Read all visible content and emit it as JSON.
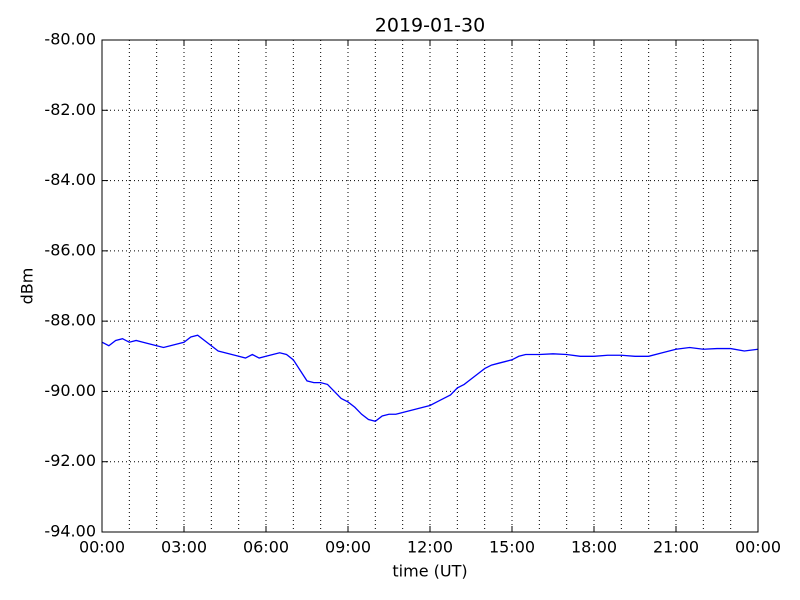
{
  "chart_data": {
    "type": "line",
    "title": "2019-01-30",
    "x_label": "time (UT)",
    "y_label": "dBm",
    "x": [
      0,
      0.25,
      0.5,
      0.75,
      1,
      1.25,
      1.5,
      1.75,
      2,
      2.25,
      2.5,
      2.75,
      3,
      3.25,
      3.5,
      3.75,
      4,
      4.25,
      4.5,
      4.75,
      5,
      5.25,
      5.5,
      5.75,
      6,
      6.25,
      6.5,
      6.75,
      7,
      7.25,
      7.5,
      7.75,
      8,
      8.25,
      8.5,
      8.75,
      9,
      9.25,
      9.5,
      9.75,
      10,
      10.25,
      10.5,
      10.75,
      11,
      11.25,
      11.5,
      11.75,
      12,
      12.25,
      12.5,
      12.75,
      13,
      13.25,
      13.5,
      13.75,
      14,
      14.25,
      14.5,
      14.75,
      15,
      15.25,
      15.5,
      16,
      16.5,
      17,
      17.5,
      18,
      18.5,
      19,
      19.5,
      20,
      20.5,
      21,
      21.5,
      22,
      22.5,
      23,
      23.5,
      24
    ],
    "values": [
      -88.6,
      -88.7,
      -88.55,
      -88.5,
      -88.6,
      -88.55,
      -88.6,
      -88.65,
      -88.7,
      -88.75,
      -88.7,
      -88.65,
      -88.6,
      -88.45,
      -88.4,
      -88.55,
      -88.7,
      -88.85,
      -88.9,
      -88.95,
      -89.0,
      -89.05,
      -88.95,
      -89.05,
      -89.0,
      -88.95,
      -88.9,
      -88.95,
      -89.1,
      -89.4,
      -89.7,
      -89.75,
      -89.75,
      -89.8,
      -90.0,
      -90.2,
      -90.3,
      -90.45,
      -90.65,
      -90.8,
      -90.85,
      -90.7,
      -90.65,
      -90.65,
      -90.6,
      -90.55,
      -90.5,
      -90.45,
      -90.4,
      -90.3,
      -90.2,
      -90.1,
      -89.9,
      -89.8,
      -89.65,
      -89.5,
      -89.35,
      -89.25,
      -89.2,
      -89.15,
      -89.1,
      -89.0,
      -88.95,
      -88.95,
      -88.93,
      -88.95,
      -89.0,
      -89.0,
      -88.97,
      -88.97,
      -89.0,
      -89.0,
      -88.9,
      -88.8,
      -88.75,
      -88.8,
      -88.78,
      -88.78,
      -88.85,
      -88.8
    ],
    "color": "#0000ff",
    "xlim": [
      0,
      24
    ],
    "xticks": [
      {
        "value": 0,
        "label": "00:00"
      },
      {
        "value": 3,
        "label": "03:00"
      },
      {
        "value": 6,
        "label": "06:00"
      },
      {
        "value": 9,
        "label": "09:00"
      },
      {
        "value": 12,
        "label": "12:00"
      },
      {
        "value": 15,
        "label": "15:00"
      },
      {
        "value": 18,
        "label": "18:00"
      },
      {
        "value": 21,
        "label": "21:00"
      },
      {
        "value": 24,
        "label": "00:00"
      }
    ],
    "x_minor_ticks": [
      1,
      2,
      4,
      5,
      7,
      8,
      10,
      11,
      13,
      14,
      16,
      17,
      19,
      20,
      22,
      23
    ],
    "ylim": [
      -94,
      -80
    ],
    "yticks": [
      {
        "value": -94,
        "label": "-94.00"
      },
      {
        "value": -92,
        "label": "-92.00"
      },
      {
        "value": -90,
        "label": "-90.00"
      },
      {
        "value": -88,
        "label": "-88.00"
      },
      {
        "value": -86,
        "label": "-86.00"
      },
      {
        "value": -84,
        "label": "-84.00"
      },
      {
        "value": -82,
        "label": "-82.00"
      },
      {
        "value": -80,
        "label": "-80.00"
      }
    ],
    "grid": true
  }
}
